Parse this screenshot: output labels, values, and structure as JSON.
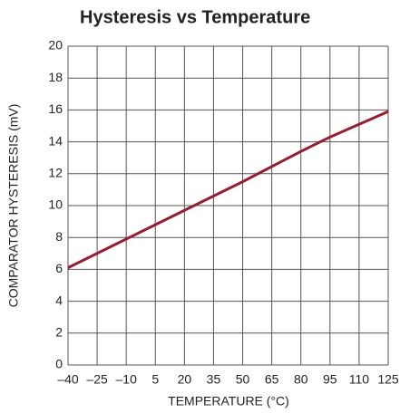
{
  "chart_data": {
    "type": "line",
    "title": "Hysteresis vs Temperature",
    "xlabel": "TEMPERATURE (°C)",
    "ylabel": "COMPARATOR HYSTERESIS (mV)",
    "x": [
      -40,
      -10,
      20,
      50,
      80,
      95,
      125
    ],
    "series": [
      {
        "name": "Hysteresis",
        "color": "#9b1b30",
        "values": [
          6.1,
          7.9,
          9.7,
          11.5,
          13.4,
          14.3,
          15.9
        ]
      }
    ],
    "xlim": [
      -40,
      125
    ],
    "xticks": [
      {
        "value": -40,
        "label": "–40"
      },
      {
        "value": -25,
        "label": "–25"
      },
      {
        "value": -10,
        "label": "–10"
      },
      5,
      20,
      35,
      50,
      65,
      80,
      95,
      110,
      125
    ],
    "ylim": [
      0,
      20
    ],
    "yticks": [
      0,
      2,
      4,
      6,
      8,
      10,
      12,
      14,
      16,
      18,
      20
    ],
    "grid": true
  }
}
